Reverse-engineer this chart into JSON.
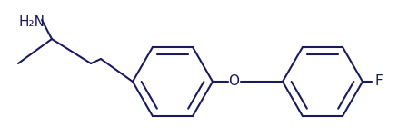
{
  "line_color": "#1a1a5e",
  "bg_color": "#ffffff",
  "line_width": 1.5,
  "font_size_nh2": 11,
  "font_size_o": 11,
  "font_size_f": 11,
  "label_nh2": "H₂N",
  "label_o": "O",
  "label_f": "F",
  "xlim": [
    -0.5,
    12.5
  ],
  "ylim": [
    -1.5,
    4.0
  ]
}
